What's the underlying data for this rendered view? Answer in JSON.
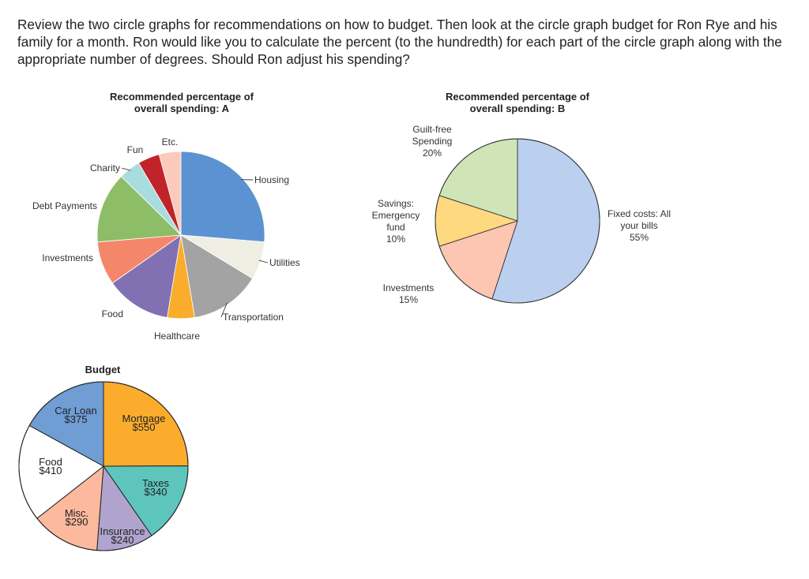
{
  "question": "Review the two circle graphs for recommendations on how to budget. Then look at the circle graph budget for Ron Rye and his family for a month. Ron would like you to calculate the percent (to the hundredth) for each part of the circle graph along with the appropriate number of degrees. Should Ron adjust his spending?",
  "chart_data": [
    {
      "type": "pie",
      "title": "Recommended percentage of overall spending: A",
      "title_lines": [
        "Recommended percentage of",
        "overall spending: A"
      ],
      "categories": [
        "Housing",
        "Utilities",
        "Transportation",
        "Healthcare",
        "Food",
        "Investments",
        "Debt Payments",
        "Charity",
        "Fun",
        "Etc."
      ],
      "values": [
        25,
        7,
        13,
        5,
        12,
        8,
        13,
        4,
        4,
        4
      ],
      "colors": [
        "#5b93d2",
        "#eeeee2",
        "#a3a3a3",
        "#f9ad2a",
        "#8171b3",
        "#f4876a",
        "#8dbd66",
        "#a8dde0",
        "#c1232b",
        "#fbcaba"
      ]
    },
    {
      "type": "pie",
      "title": "Recommended percentage of overall spending: B",
      "title_lines": [
        "Recommended percentage of",
        "overall spending: B"
      ],
      "categories": [
        "Fixed costs: All your bills",
        "Investments",
        "Savings: Emergency fund",
        "Guilt-free Spending"
      ],
      "values": [
        55,
        15,
        10,
        20
      ],
      "label_lines": [
        [
          "Fixed costs: All",
          "your bills",
          "55%"
        ],
        [
          "Investments",
          "15%"
        ],
        [
          "Savings:",
          "Emergency",
          "fund",
          "10%"
        ],
        [
          "Guilt-free",
          "Spending",
          "20%"
        ]
      ],
      "colors": [
        "#bad0ee",
        "#fcc6b3",
        "#fed97f",
        "#cfe5b8"
      ]
    },
    {
      "type": "pie",
      "title": "Budget",
      "categories": [
        "Mortgage",
        "Taxes",
        "Insurance",
        "Misc.",
        "Food",
        "Car Loan"
      ],
      "values": [
        550,
        340,
        240,
        290,
        410,
        375
      ],
      "label_lines": [
        [
          "Mortgage",
          "$550"
        ],
        [
          "Taxes",
          "$340"
        ],
        [
          "Insurance",
          "$240"
        ],
        [
          "Misc.",
          "$290"
        ],
        [
          "Food",
          "$410"
        ],
        [
          "Car Loan",
          "$375"
        ]
      ],
      "colors": [
        "#fbac2d",
        "#5ec5bd",
        "#b0a4cf",
        "#fdb99d",
        "#ffffff",
        "#6f9dd4"
      ]
    }
  ]
}
